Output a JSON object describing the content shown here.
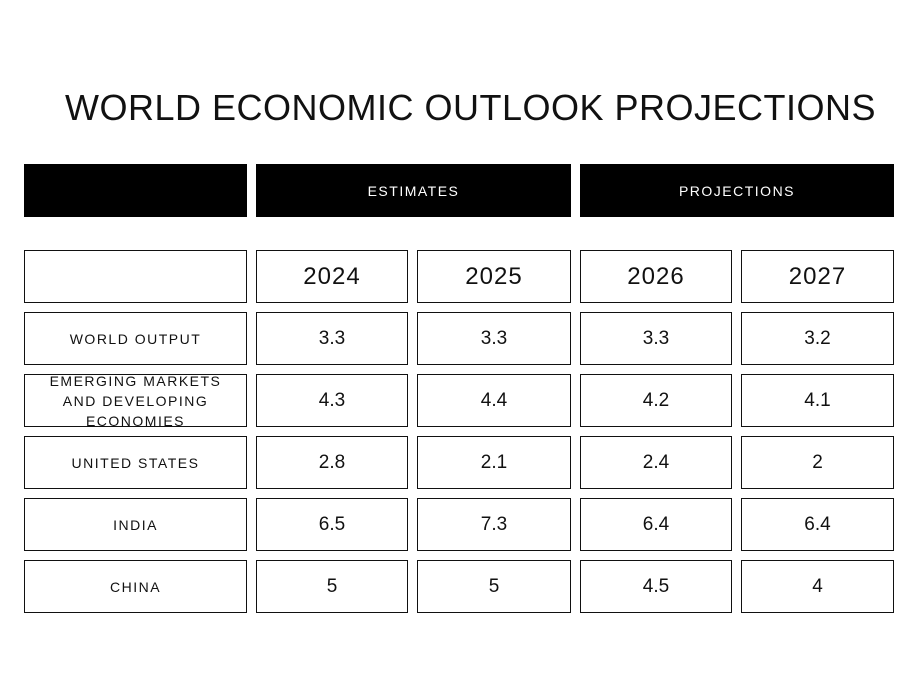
{
  "title": "WORLD ECONOMIC OUTLOOK PROJECTIONS",
  "chart_data": {
    "type": "table",
    "title": "WORLD ECONOMIC OUTLOOK PROJECTIONS",
    "column_groups": [
      {
        "label": "",
        "columns": []
      },
      {
        "label": "ESTIMATES",
        "columns": [
          "2024",
          "2025"
        ]
      },
      {
        "label": "PROJECTIONS",
        "columns": [
          "2026",
          "2027"
        ]
      }
    ],
    "columns": [
      "2024",
      "2025",
      "2026",
      "2027"
    ],
    "rows": [
      {
        "label": "WORLD OUTPUT",
        "values": [
          "3.3",
          "3.3",
          "3.3",
          "3.2"
        ]
      },
      {
        "label": "EMERGING MARKETS AND DEVELOPING ECONOMIES",
        "values": [
          "4.3",
          "4.4",
          "4.2",
          "4.1"
        ]
      },
      {
        "label": "UNITED STATES",
        "values": [
          "2.8",
          "2.1",
          "2.4",
          "2"
        ]
      },
      {
        "label": "INDIA",
        "values": [
          "6.5",
          "7.3",
          "6.4",
          "6.4"
        ]
      },
      {
        "label": "CHINA",
        "values": [
          "5",
          "5",
          "4.5",
          "4"
        ]
      }
    ]
  }
}
